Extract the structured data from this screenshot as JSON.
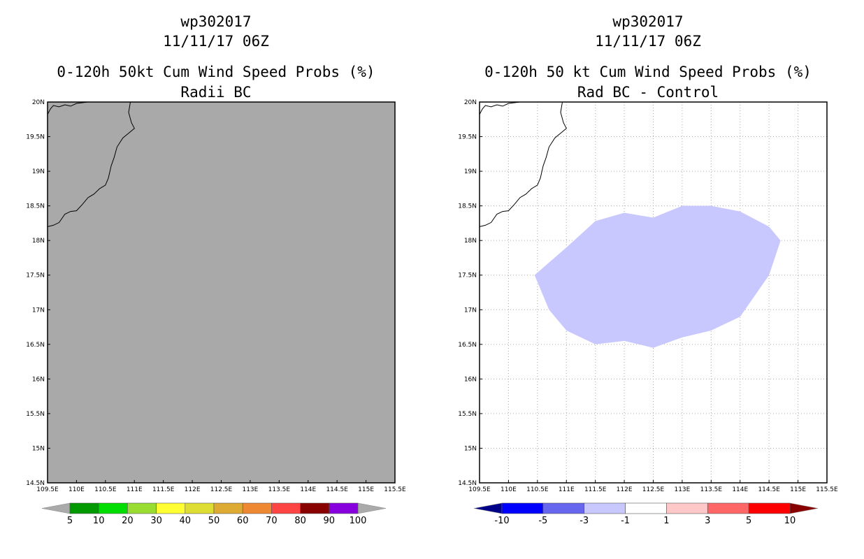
{
  "left_panel": {
    "storm_id": "wp302017",
    "datetime": "11/11/17 06Z",
    "product": "0-120h 50kt Cum Wind Speed Probs (%)",
    "subtitle": "Radii BC",
    "background_color": "#a9a9a9",
    "colorbar": {
      "labels": [
        "5",
        "10",
        "20",
        "30",
        "40",
        "50",
        "60",
        "70",
        "80",
        "90",
        "100"
      ],
      "colors": [
        "#009900",
        "#00dd00",
        "#99dd33",
        "#ffff33",
        "#dddd33",
        "#ddaa33",
        "#ee8833",
        "#ff4444",
        "#880000",
        "#8800dd"
      ],
      "under_color": "#aaaaaa",
      "over_color": "#aaaaaa"
    }
  },
  "right_panel": {
    "storm_id": "wp302017",
    "datetime": "11/11/17 06Z",
    "product": "0-120h 50 kt Cum Wind Speed Probs (%)",
    "subtitle": "Rad BC - Control",
    "background_color": "#ffffff",
    "difference_region": {
      "category": "-3 to -1",
      "color": "#c8c8ff",
      "lonlat": [
        [
          110.45,
          17.5
        ],
        [
          110.7,
          17.0
        ],
        [
          111.0,
          16.7
        ],
        [
          111.5,
          16.5
        ],
        [
          112.0,
          16.55
        ],
        [
          112.5,
          16.45
        ],
        [
          113.0,
          16.6
        ],
        [
          113.5,
          16.7
        ],
        [
          114.0,
          16.9
        ],
        [
          114.5,
          17.5
        ],
        [
          114.7,
          18.0
        ],
        [
          114.5,
          18.2
        ],
        [
          114.0,
          18.42
        ],
        [
          113.5,
          18.5
        ],
        [
          113.0,
          18.5
        ],
        [
          112.5,
          18.33
        ],
        [
          112.0,
          18.4
        ],
        [
          111.5,
          18.28
        ],
        [
          111.0,
          17.9
        ],
        [
          110.45,
          17.5
        ]
      ]
    },
    "colorbar": {
      "labels": [
        "-10",
        "-5",
        "-3",
        "-1",
        "1",
        "3",
        "5",
        "10"
      ],
      "colors": [
        "#0000ff",
        "#6666ee",
        "#c8c8ff",
        "#ffffff",
        "#ffc8c8",
        "#ff6666",
        "#ff0000"
      ],
      "under_color": "#000088",
      "over_color": "#880000"
    }
  },
  "map": {
    "lon_ticks": [
      "109.5E",
      "110E",
      "110.5E",
      "111E",
      "111.5E",
      "112E",
      "112.5E",
      "113E",
      "113.5E",
      "114E",
      "114.5E",
      "115E",
      "115.5E"
    ],
    "lat_ticks": [
      "14.5N",
      "15N",
      "15.5N",
      "16N",
      "16.5N",
      "17N",
      "17.5N",
      "18N",
      "18.5N",
      "19N",
      "19.5N",
      "20N"
    ],
    "lon_range": [
      109.5,
      115.5
    ],
    "lat_range": [
      14.5,
      20.0
    ],
    "coastline_lonlat": [
      [
        109.5,
        18.2
      ],
      [
        109.6,
        18.22
      ],
      [
        109.7,
        18.26
      ],
      [
        109.8,
        18.38
      ],
      [
        109.9,
        18.42
      ],
      [
        110.0,
        18.43
      ],
      [
        110.1,
        18.52
      ],
      [
        110.2,
        18.62
      ],
      [
        110.3,
        18.67
      ],
      [
        110.4,
        18.75
      ],
      [
        110.5,
        18.8
      ],
      [
        110.55,
        18.9
      ],
      [
        110.6,
        19.08
      ],
      [
        110.65,
        19.2
      ],
      [
        110.7,
        19.35
      ],
      [
        110.8,
        19.48
      ],
      [
        110.9,
        19.55
      ],
      [
        111.0,
        19.62
      ],
      [
        110.95,
        19.7
      ],
      [
        110.9,
        19.85
      ],
      [
        110.93,
        20.0
      ]
    ],
    "coastline_top_lonlat": [
      [
        109.5,
        19.82
      ],
      [
        109.55,
        19.9
      ],
      [
        109.6,
        19.95
      ],
      [
        109.7,
        19.93
      ],
      [
        109.8,
        19.96
      ],
      [
        109.9,
        19.94
      ],
      [
        110.0,
        19.98
      ],
      [
        110.2,
        20.0
      ]
    ]
  }
}
